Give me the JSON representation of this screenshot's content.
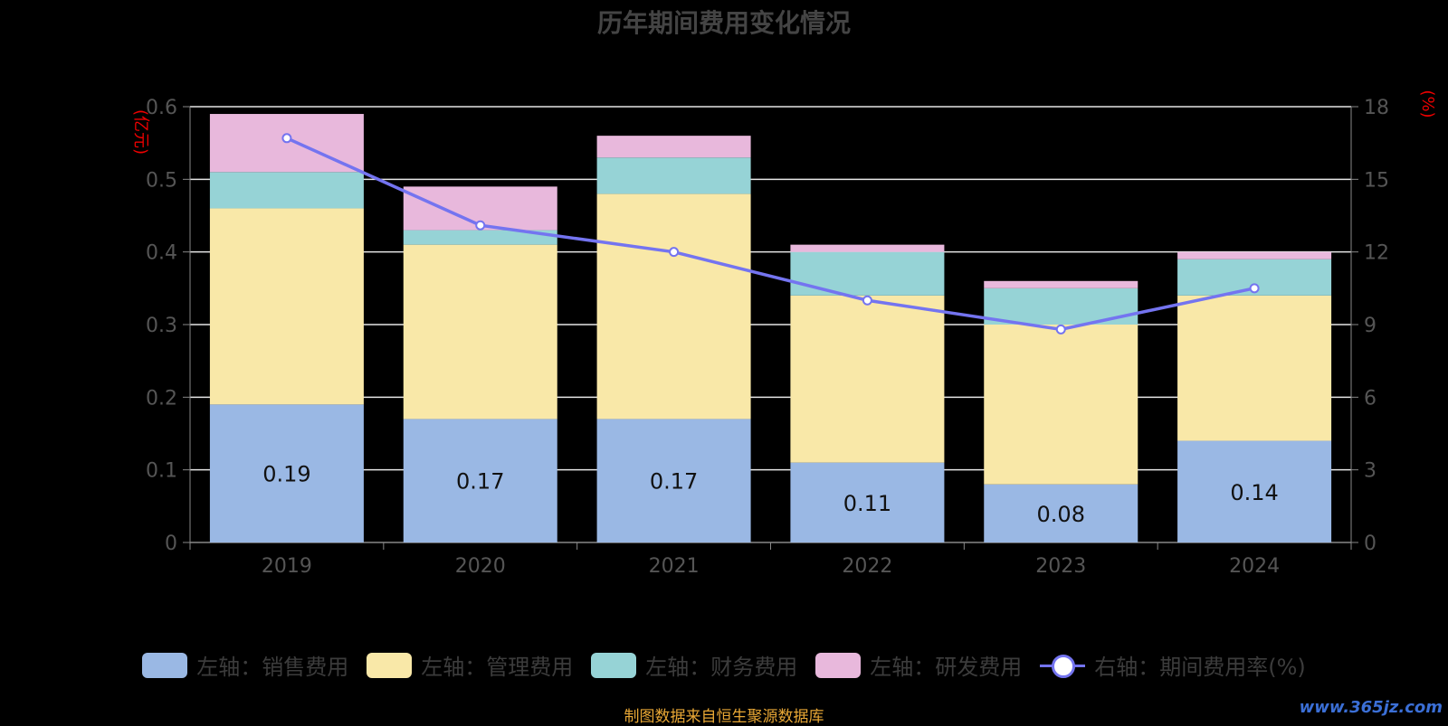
{
  "chart_data": {
    "type": "bar",
    "title": "历年期间费用变化情况",
    "categories": [
      "2019",
      "2020",
      "2021",
      "2022",
      "2023",
      "2024"
    ],
    "left_axis": {
      "unit": "(亿元)",
      "ylim": [
        0,
        0.6
      ],
      "ticks": [
        "0",
        "0.1",
        "0.2",
        "0.3",
        "0.4",
        "0.5",
        "0.6"
      ]
    },
    "right_axis": {
      "unit": "(%)",
      "ylim": [
        0,
        18
      ],
      "ticks": [
        "0",
        "3",
        "6",
        "9",
        "12",
        "15",
        "18"
      ]
    },
    "series": [
      {
        "name": "左轴：销售费用",
        "stack": true,
        "color": "#9ab8e4",
        "values": [
          0.19,
          0.17,
          0.17,
          0.11,
          0.08,
          0.14
        ],
        "labels": [
          "0.19",
          "0.17",
          "0.17",
          "0.11",
          "0.08",
          "0.14"
        ]
      },
      {
        "name": "左轴：管理费用",
        "stack": true,
        "color": "#f9e8a8",
        "values": [
          0.27,
          0.24,
          0.31,
          0.23,
          0.22,
          0.2
        ]
      },
      {
        "name": "左轴：财务费用",
        "stack": true,
        "color": "#96d3d6",
        "values": [
          0.05,
          0.02,
          0.05,
          0.06,
          0.05,
          0.05
        ]
      },
      {
        "name": "左轴：研发费用",
        "stack": true,
        "color": "#e8b8dc",
        "values": [
          0.08,
          0.06,
          0.03,
          0.01,
          0.01,
          0.01
        ]
      },
      {
        "name": "右轴：期间费用率(%)",
        "type": "line",
        "axis": "right",
        "color": "#7474f0",
        "values": [
          16.7,
          13.1,
          12.0,
          10.0,
          8.8,
          10.5
        ]
      }
    ],
    "grid": true,
    "legend_position": "bottom"
  },
  "footer": "制图数据来自恒生聚源数据库",
  "watermark": "www.365jz.com"
}
